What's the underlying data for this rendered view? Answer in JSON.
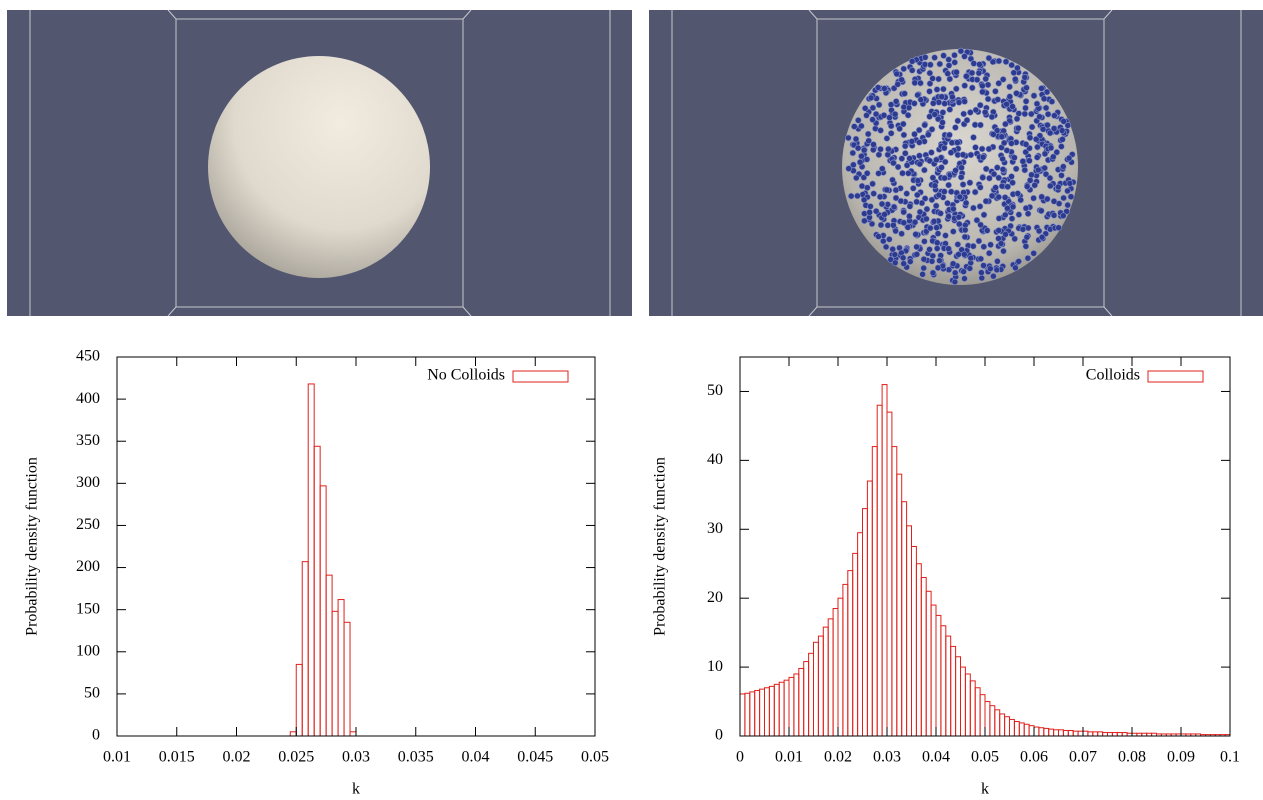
{
  "chart_data": [
    {
      "type": "histogram",
      "series": [
        {
          "name": "No Colloids",
          "color": "#e0201b",
          "values": [
            5,
            85,
            207,
            418,
            344,
            297,
            191,
            148,
            162,
            135,
            5
          ]
        }
      ],
      "bins": [
        0.0245,
        0.025,
        0.0255,
        0.026,
        0.0265,
        0.027,
        0.0275,
        0.028,
        0.0285,
        0.029,
        0.0295,
        0.03
      ],
      "x_label": "k",
      "y_label": "Probability density function",
      "xlim": [
        0.01,
        0.05
      ],
      "xticks": [
        0.01,
        0.015,
        0.02,
        0.025,
        0.03,
        0.035,
        0.04,
        0.045,
        0.05
      ],
      "ylim": [
        0,
        450
      ],
      "yticks": [
        0,
        50,
        100,
        150,
        200,
        250,
        300,
        350,
        400,
        450
      ],
      "legend": "top-right"
    },
    {
      "type": "histogram",
      "series": [
        {
          "name": "Colloids",
          "color": "#e0201b",
          "values": [
            6.1,
            6.2,
            6.4,
            6.6,
            6.8,
            7.0,
            7.2,
            7.5,
            7.8,
            8.1,
            8.5,
            9.0,
            9.8,
            10.8,
            12.0,
            13.6,
            14.5,
            15.8,
            17.0,
            18.5,
            20.0,
            22.0,
            24.0,
            26.5,
            29.5,
            33.0,
            37.0,
            42.0,
            48.0,
            51.0,
            47.0,
            42.0,
            38.0,
            34.0,
            30.5,
            27.5,
            25.0,
            23.0,
            21.0,
            19.0,
            17.5,
            16.0,
            14.5,
            13.0,
            11.5,
            10.0,
            9.0,
            8.0,
            7.0,
            6.0,
            5.0,
            4.4,
            3.8,
            3.2,
            2.8,
            2.4,
            2.1,
            1.9,
            1.7,
            1.5,
            1.3,
            1.2,
            1.1,
            1.0,
            0.9,
            0.9,
            0.8,
            0.8,
            0.7,
            0.7,
            0.7,
            0.6,
            0.6,
            0.6,
            0.5,
            0.5,
            0.5,
            0.5,
            0.5,
            0.4,
            0.4,
            0.4,
            0.4,
            0.4,
            0.4,
            0.3,
            0.3,
            0.3,
            0.3,
            0.3,
            0.3,
            0.3,
            0.3,
            0.3,
            0.2,
            0.2,
            0.2,
            0.2,
            0.2,
            0.2
          ]
        }
      ],
      "bins": [
        0,
        0.001,
        0.002,
        0.003,
        0.004,
        0.005,
        0.006,
        0.007,
        0.008,
        0.009,
        0.01,
        0.011,
        0.012,
        0.013,
        0.014,
        0.015,
        0.016,
        0.017,
        0.018,
        0.019,
        0.02,
        0.021,
        0.022,
        0.023,
        0.024,
        0.025,
        0.026,
        0.027,
        0.028,
        0.029,
        0.03,
        0.031,
        0.032,
        0.033,
        0.034,
        0.035,
        0.036,
        0.037,
        0.038,
        0.039,
        0.04,
        0.041,
        0.042,
        0.043,
        0.044,
        0.045,
        0.046,
        0.047,
        0.048,
        0.049,
        0.05,
        0.051,
        0.052,
        0.053,
        0.054,
        0.055,
        0.056,
        0.057,
        0.058,
        0.059,
        0.06,
        0.061,
        0.062,
        0.063,
        0.064,
        0.065,
        0.066,
        0.067,
        0.068,
        0.069,
        0.07,
        0.071,
        0.072,
        0.073,
        0.074,
        0.075,
        0.076,
        0.077,
        0.078,
        0.079,
        0.08,
        0.081,
        0.082,
        0.083,
        0.084,
        0.085,
        0.086,
        0.087,
        0.088,
        0.089,
        0.09,
        0.091,
        0.092,
        0.093,
        0.094,
        0.095,
        0.096,
        0.097,
        0.098,
        0.099,
        0.1
      ],
      "x_label": "k",
      "y_label": "Probability density function",
      "xlim": [
        0,
        0.1
      ],
      "xticks": [
        0,
        0.01,
        0.02,
        0.03,
        0.04,
        0.05,
        0.06,
        0.07,
        0.08,
        0.09,
        0.1
      ],
      "ylim": [
        0,
        55
      ],
      "yticks": [
        0,
        10,
        20,
        30,
        40,
        50
      ],
      "legend": "top-right"
    }
  ]
}
